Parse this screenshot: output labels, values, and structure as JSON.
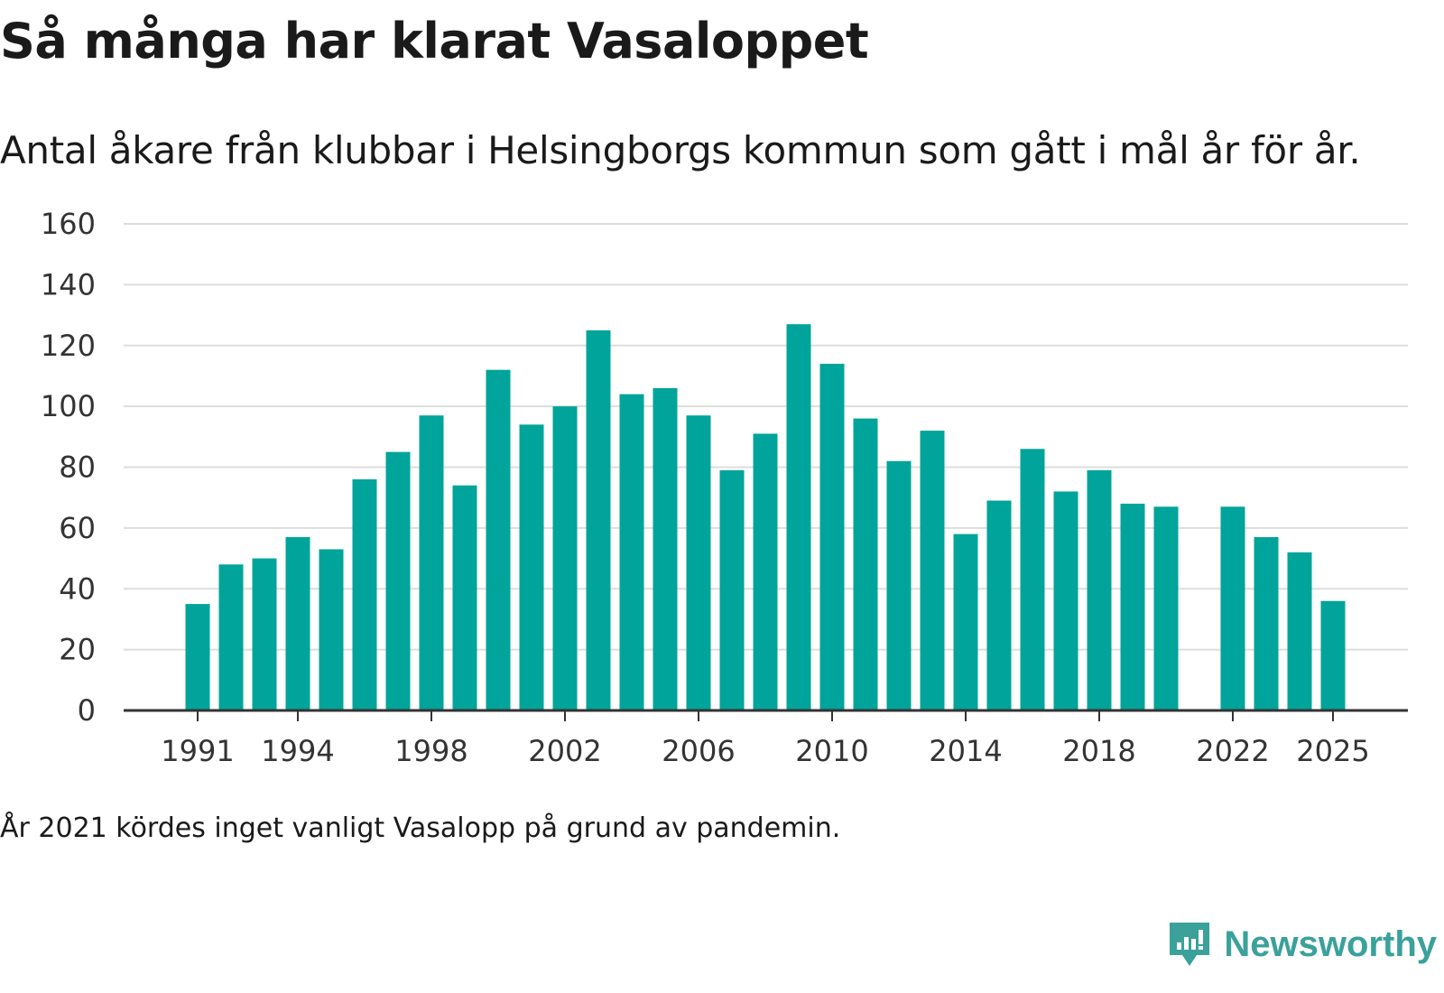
{
  "header": {
    "title": "Så många har klarat Vasaloppet",
    "subtitle": "Antal åkare från klubbar i Helsingborgs kommun som gått i mål år för år."
  },
  "footer": {
    "note": "År 2021 kördes inget vanligt Vasalopp på grund av pandemin.",
    "brand": "Newsworthy"
  },
  "colors": {
    "bar": "#00a49a",
    "brand": "#3aa19b",
    "grid": "#dddddd",
    "axis": "#333333"
  },
  "chart_data": {
    "type": "bar",
    "title": "Så många har klarat Vasaloppet",
    "xlabel": "",
    "ylabel": "",
    "ylim": [
      0,
      160
    ],
    "y_ticks": [
      0,
      20,
      40,
      60,
      80,
      100,
      120,
      140,
      160
    ],
    "x_tick_labels": [
      1991,
      1994,
      1998,
      2002,
      2006,
      2010,
      2014,
      2018,
      2022,
      2025
    ],
    "categories": [
      1991,
      1992,
      1993,
      1994,
      1995,
      1996,
      1997,
      1998,
      1999,
      2000,
      2001,
      2002,
      2003,
      2004,
      2005,
      2006,
      2007,
      2008,
      2009,
      2010,
      2011,
      2012,
      2013,
      2014,
      2015,
      2016,
      2017,
      2018,
      2019,
      2020,
      2021,
      2022,
      2023,
      2024,
      2025
    ],
    "values": [
      35,
      48,
      50,
      57,
      53,
      76,
      85,
      97,
      74,
      112,
      94,
      100,
      125,
      104,
      106,
      97,
      79,
      91,
      127,
      114,
      96,
      82,
      92,
      58,
      69,
      86,
      72,
      79,
      68,
      67,
      null,
      67,
      57,
      52,
      36
    ],
    "grid": true
  }
}
